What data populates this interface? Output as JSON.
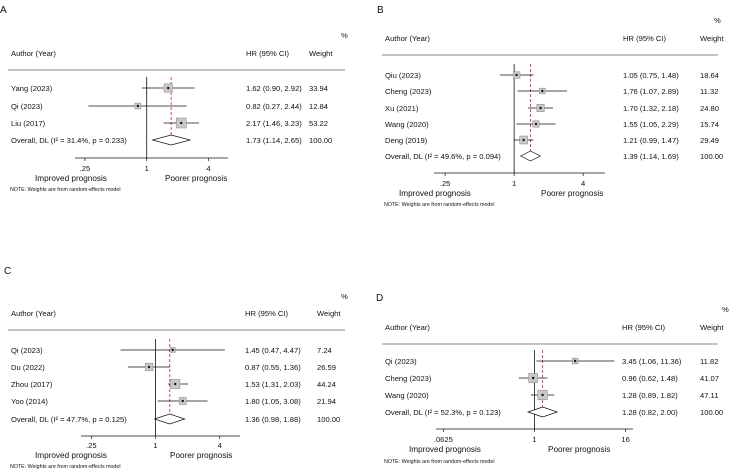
{
  "colors": {
    "ink": "#111111",
    "reference": "#c62828",
    "box_fill": "#c8c8c8",
    "box_stroke": "#888888"
  },
  "chart_data": [
    {
      "type": "forest",
      "panel_label": "A",
      "weight_percent_label": "%",
      "col_author": "Author (Year)",
      "col_hr": "HR (95% CI)",
      "col_weight": "Weight",
      "scale": "log",
      "xlim": [
        0.2,
        6.2
      ],
      "ticks": [
        {
          "value": 0.25,
          "label": ".25"
        },
        {
          "value": 1,
          "label": "1"
        },
        {
          "value": 4,
          "label": "4"
        }
      ],
      "xlabel_left": "Improved prognosis",
      "xlabel_right": "Poorer prognosis",
      "note": "NOTE: Weights are from random-effects model",
      "studies": [
        {
          "author": "Yang (2023)",
          "hr": 1.62,
          "lo": 0.9,
          "hi": 2.92,
          "hr_text": "1.62 (0.90, 2.92)",
          "weight": 33.94,
          "weight_text": "33.94"
        },
        {
          "author": "Qi (2023)",
          "hr": 0.82,
          "lo": 0.27,
          "hi": 2.44,
          "hr_text": "0.82 (0.27, 2.44)",
          "weight": 12.84,
          "weight_text": "12.84"
        },
        {
          "author": "Liu (2017)",
          "hr": 2.17,
          "lo": 1.46,
          "hi": 3.23,
          "hr_text": "2.17 (1.46, 3.23)",
          "weight": 53.22,
          "weight_text": "53.22"
        }
      ],
      "overall": {
        "label": "Overall, DL (I² = 31.4%, p = 0.233)",
        "hr": 1.73,
        "lo": 1.14,
        "hi": 2.65,
        "hr_text": "1.73 (1.14, 2.65)",
        "weight_text": "100.00"
      }
    },
    {
      "type": "forest",
      "panel_label": "B",
      "weight_percent_label": "%",
      "col_author": "Author (Year)",
      "col_hr": "HR (95% CI)",
      "col_weight": "Weight",
      "scale": "log",
      "xlim": [
        0.2,
        6.2
      ],
      "ticks": [
        {
          "value": 0.25,
          "label": ".25"
        },
        {
          "value": 1,
          "label": "1"
        },
        {
          "value": 4,
          "label": "4"
        }
      ],
      "xlabel_left": "Improved prognosis",
      "xlabel_right": "Poorer prognosis",
      "note": "NOTE: Weights are from random-effects model",
      "studies": [
        {
          "author": "Qiu (2023)",
          "hr": 1.05,
          "lo": 0.75,
          "hi": 1.48,
          "hr_text": "1.05 (0.75, 1.48)",
          "weight": 18.64,
          "weight_text": "18.64"
        },
        {
          "author": "Cheng (2023)",
          "hr": 1.76,
          "lo": 1.07,
          "hi": 2.89,
          "hr_text": "1.76 (1.07, 2.89)",
          "weight": 11.32,
          "weight_text": "11.32"
        },
        {
          "author": "Xu (2021)",
          "hr": 1.7,
          "lo": 1.32,
          "hi": 2.18,
          "hr_text": "1.70 (1.32, 2.18)",
          "weight": 24.8,
          "weight_text": "24.80"
        },
        {
          "author": "Wang (2020)",
          "hr": 1.55,
          "lo": 1.05,
          "hi": 2.29,
          "hr_text": "1.55 (1.05, 2.29)",
          "weight": 15.74,
          "weight_text": "15.74"
        },
        {
          "author": "Deng (2019)",
          "hr": 1.21,
          "lo": 0.99,
          "hi": 1.47,
          "hr_text": "1.21 (0.99, 1.47)",
          "weight": 29.49,
          "weight_text": "29.49"
        }
      ],
      "overall": {
        "label": "Overall, DL (I² = 49.6%, p = 0.094)",
        "hr": 1.39,
        "lo": 1.14,
        "hi": 1.69,
        "hr_text": "1.39 (1.14, 1.69)",
        "weight_text": "100.00"
      }
    },
    {
      "type": "forest",
      "panel_label": "C",
      "weight_percent_label": "%",
      "col_author": "Author (Year)",
      "col_hr": "HR (95% CI)",
      "col_weight": "Weight",
      "scale": "log",
      "xlim": [
        0.2,
        6.2
      ],
      "ticks": [
        {
          "value": 0.25,
          "label": ".25"
        },
        {
          "value": 1,
          "label": "1"
        },
        {
          "value": 4,
          "label": "4"
        }
      ],
      "xlabel_left": "Improved prognosis",
      "xlabel_right": "Poorer prognosis",
      "note": "NOTE: Weights are from random-effects model",
      "studies": [
        {
          "author": "Qi (2023)",
          "hr": 1.45,
          "lo": 0.47,
          "hi": 4.47,
          "hr_text": "1.45 (0.47, 4.47)",
          "weight": 7.24,
          "weight_text": "7.24"
        },
        {
          "author": "Du (2022)",
          "hr": 0.87,
          "lo": 0.55,
          "hi": 1.36,
          "hr_text": "0.87 (0.55, 1.36)",
          "weight": 26.59,
          "weight_text": "26.59"
        },
        {
          "author": "Zhou (2017)",
          "hr": 1.53,
          "lo": 1.31,
          "hi": 2.03,
          "hr_text": "1.53 (1.31, 2.03)",
          "weight": 44.24,
          "weight_text": "44.24"
        },
        {
          "author": "Yoo (2014)",
          "hr": 1.8,
          "lo": 1.05,
          "hi": 3.08,
          "hr_text": "1.80 (1.05, 3.08)",
          "weight": 21.94,
          "weight_text": "21.94"
        }
      ],
      "overall": {
        "label": "Overall, DL (I² = 47.7%, p = 0.125)",
        "hr": 1.36,
        "lo": 0.98,
        "hi": 1.88,
        "hr_text": "1.36 (0.98, 1.88)",
        "weight_text": "100.00"
      }
    },
    {
      "type": "forest",
      "panel_label": "D",
      "weight_percent_label": "%",
      "col_author": "Author (Year)",
      "col_hr": "HR (95% CI)",
      "col_weight": "Weight",
      "scale": "log",
      "xlim": [
        0.05,
        20
      ],
      "ticks": [
        {
          "value": 0.0625,
          "label": ".0625"
        },
        {
          "value": 1,
          "label": "1"
        },
        {
          "value": 16,
          "label": "16"
        }
      ],
      "xlabel_left": "Improved prognosis",
      "xlabel_right": "Poorer prognosis",
      "note": "NOTE: Weights are from random-effects model",
      "studies": [
        {
          "author": "Qi (2023)",
          "hr": 3.45,
          "lo": 1.06,
          "hi": 11.36,
          "hr_text": "3.45 (1.06, 11.36)",
          "weight": 11.82,
          "weight_text": "11.82"
        },
        {
          "author": "Cheng (2023)",
          "hr": 0.96,
          "lo": 0.62,
          "hi": 1.48,
          "hr_text": "0.96 (0.62, 1.48)",
          "weight": 41.07,
          "weight_text": "41.07"
        },
        {
          "author": "Wang (2020)",
          "hr": 1.28,
          "lo": 0.89,
          "hi": 1.82,
          "hr_text": "1.28 (0.89, 1.82)",
          "weight": 47.11,
          "weight_text": "47.11"
        }
      ],
      "overall": {
        "label": "Overall, DL (I² = 52.3%, p = 0.123)",
        "hr": 1.28,
        "lo": 0.82,
        "hi": 2.0,
        "hr_text": "1.28 (0.82, 2.00)",
        "weight_text": "100.00"
      }
    }
  ]
}
